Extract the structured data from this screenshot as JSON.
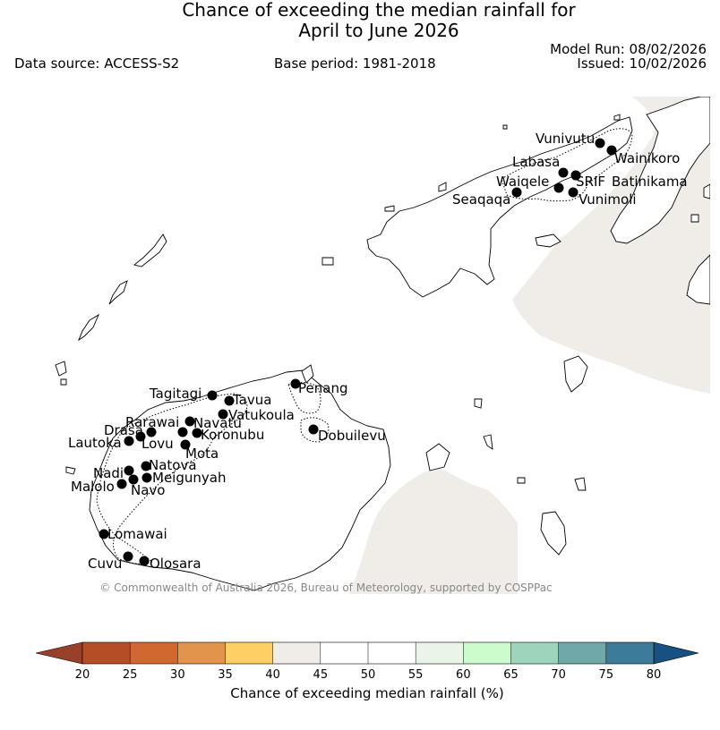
{
  "header": {
    "title_line1": "Chance of exceeding the median rainfall for",
    "title_line2": "April to June 2026",
    "data_source": "Data source: ACCESS-S2",
    "base_period": "Base period: 1981-2018",
    "model_run": "Model Run: 08/02/2026",
    "issued": "Issued: 10/02/2026"
  },
  "map": {
    "copyright": "© Commonwealth of Australia 2026, Bureau of Meteorology, supported by COSPPac",
    "land_color": "#ffffff",
    "ocean_fill_color": "#f0ece7",
    "stations": [
      {
        "name": "Vunivutu"
      },
      {
        "name": "Wainikoro"
      },
      {
        "name": "Labasa"
      },
      {
        "name": "Waiqele"
      },
      {
        "name": "SRIF"
      },
      {
        "name": "Batinikama"
      },
      {
        "name": "Seaqaqa"
      },
      {
        "name": "Vunimoli"
      },
      {
        "name": "Penang"
      },
      {
        "name": "Tagitagi"
      },
      {
        "name": "Tavua"
      },
      {
        "name": "Vatukoula"
      },
      {
        "name": "Rarawai"
      },
      {
        "name": "Navatu"
      },
      {
        "name": "Drasa"
      },
      {
        "name": "Koronubu"
      },
      {
        "name": "Lautoka"
      },
      {
        "name": "Lovu"
      },
      {
        "name": "Dobuilevu"
      },
      {
        "name": "Mota"
      },
      {
        "name": "Natova"
      },
      {
        "name": "Nadi"
      },
      {
        "name": "Meigunyah"
      },
      {
        "name": "Malolo"
      },
      {
        "name": "Navo"
      },
      {
        "name": "Lomawai"
      },
      {
        "name": "Cuvu"
      },
      {
        "name": "Olosara"
      }
    ]
  },
  "colorbar": {
    "title": "Chance of exceeding median rainfall (%)",
    "ticks": [
      "20",
      "25",
      "30",
      "35",
      "40",
      "45",
      "50",
      "55",
      "60",
      "65",
      "70",
      "75",
      "80"
    ],
    "colors": [
      "#b54d27",
      "#d1682f",
      "#e2954a",
      "#fdd065",
      "#f0ece7",
      "#ffffff",
      "#ffffff",
      "#e9f5e8",
      "#ccfccb",
      "#9ed3bc",
      "#70a8aa",
      "#3c7b9a"
    ],
    "under_color": "#99402a",
    "over_color": "#165182"
  }
}
